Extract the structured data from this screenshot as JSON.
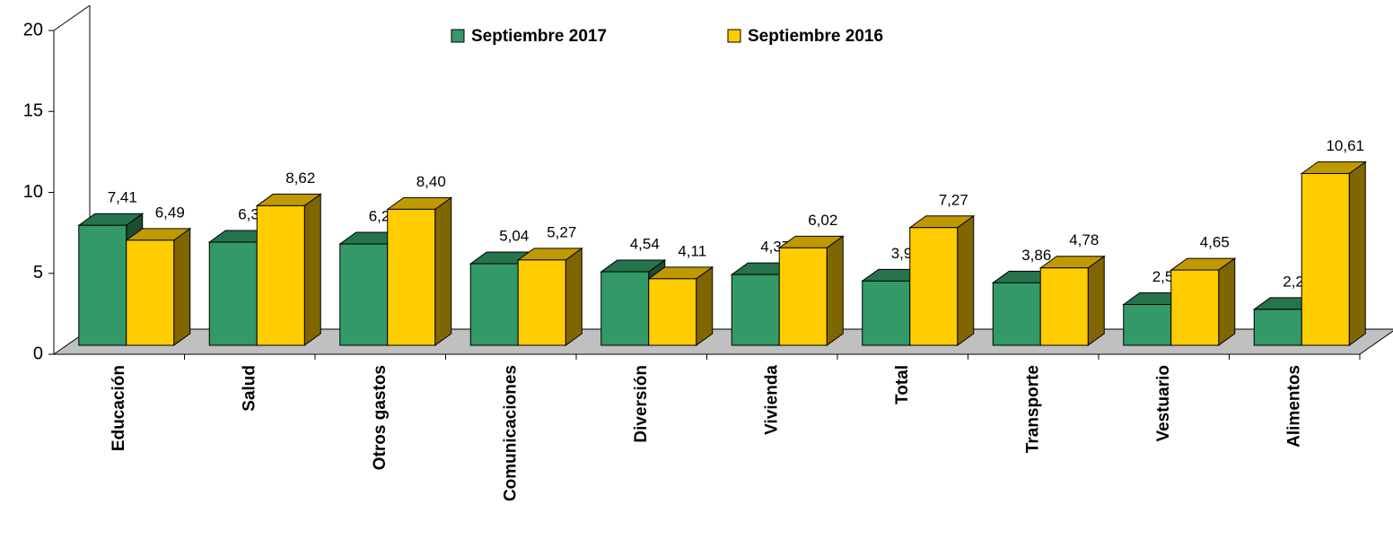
{
  "chart_data": {
    "type": "bar3d",
    "categories": [
      "Educación",
      "Salud",
      "Otros gastos",
      "Comunicaciones",
      "Diversión",
      "Vivienda",
      "Total",
      "Transporte",
      "Vestuario",
      "Alimentos"
    ],
    "series": [
      {
        "name": "Septiembre 2017",
        "color": "#339966",
        "values": [
          7.41,
          6.37,
          6.26,
          5.04,
          4.54,
          4.37,
          3.97,
          3.86,
          2.52,
          2.22
        ],
        "value_labels": [
          "7,41",
          "6,37",
          "6,26",
          "5,04",
          "4,54",
          "4,37",
          "3,97",
          "3,86",
          "2,52",
          "2,22"
        ]
      },
      {
        "name": "Septiembre 2016",
        "color": "#ffcc00",
        "values": [
          6.49,
          8.62,
          8.4,
          5.27,
          4.11,
          6.02,
          7.27,
          4.78,
          4.65,
          10.61
        ],
        "value_labels": [
          "6,49",
          "8,62",
          "8,40",
          "5,27",
          "4,11",
          "6,02",
          "7,27",
          "4,78",
          "4,65",
          "10,61"
        ]
      }
    ],
    "ylim": [
      0,
      20
    ],
    "yticks": [
      0,
      5,
      10,
      15,
      20
    ],
    "legend": "top"
  }
}
